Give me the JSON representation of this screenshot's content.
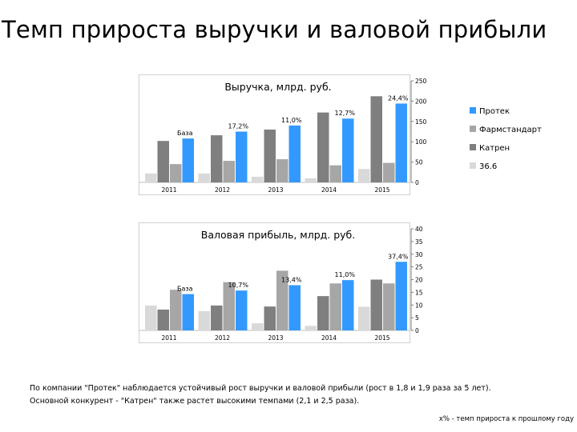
{
  "page": {
    "title": "Темп прироста выручки и валовой прибыли",
    "note_line1": "По компании \"Протек\" наблюдается устойчивый рост выручки и валовой прибыли (рост в 1,8 и 1,9 раза за 5 лет).",
    "note_line2": "Основной конкурент - \"Катрен\" также растет высокими темпами (2,1 и 2,5 раза).",
    "footnote": "х% - темп прироста к прошлому году"
  },
  "colors": {
    "Протек": "#3399ff",
    "Фармстандарт": "#a6a6a6",
    "Катрен": "#7f7f7f",
    "36.6": "#d9d9d9"
  },
  "chart_data": [
    {
      "type": "bar",
      "title": "Выручка, млрд. руб.",
      "categories": [
        "2011",
        "2012",
        "2013",
        "2014",
        "2015"
      ],
      "series": [
        {
          "name": "36.6",
          "values": [
            22,
            22,
            14,
            10,
            33
          ]
        },
        {
          "name": "Катрен",
          "values": [
            102,
            116,
            130,
            172,
            212
          ]
        },
        {
          "name": "Фармстандарт",
          "values": [
            45,
            53,
            57,
            42,
            48
          ]
        },
        {
          "name": "Протек",
          "values": [
            108,
            125,
            140,
            157,
            194
          ]
        }
      ],
      "growth_labels": [
        "База",
        "17,2%",
        "11,0%",
        "12,7%",
        "24,4%"
      ],
      "ylim": [
        0,
        250
      ],
      "yticks": [
        0,
        50,
        100,
        150,
        200,
        250
      ],
      "legend": [
        "Протек",
        "Фармстандарт",
        "Катрен",
        "36.6"
      ],
      "legend_position": "right"
    },
    {
      "type": "bar",
      "title": "Валовая прибыль, млрд. руб.",
      "categories": [
        "2011",
        "2012",
        "2013",
        "2014",
        "2015"
      ],
      "series": [
        {
          "name": "36.6",
          "values": [
            9.8,
            7.6,
            2.8,
            1.8,
            9.3
          ]
        },
        {
          "name": "Катрен",
          "values": [
            8.2,
            9.8,
            9.4,
            13.5,
            20
          ]
        },
        {
          "name": "Фармстандарт",
          "values": [
            16,
            19,
            23.5,
            18.5,
            18.5
          ]
        },
        {
          "name": "Протек",
          "values": [
            14.3,
            15.7,
            17.8,
            19.8,
            27
          ]
        }
      ],
      "growth_labels": [
        "База",
        "10,7%",
        "13,4%",
        "11,0%",
        "37,4%"
      ],
      "ylim": [
        0,
        40
      ],
      "yticks": [
        0,
        5,
        10,
        15,
        20,
        25,
        30,
        35,
        40
      ]
    }
  ]
}
